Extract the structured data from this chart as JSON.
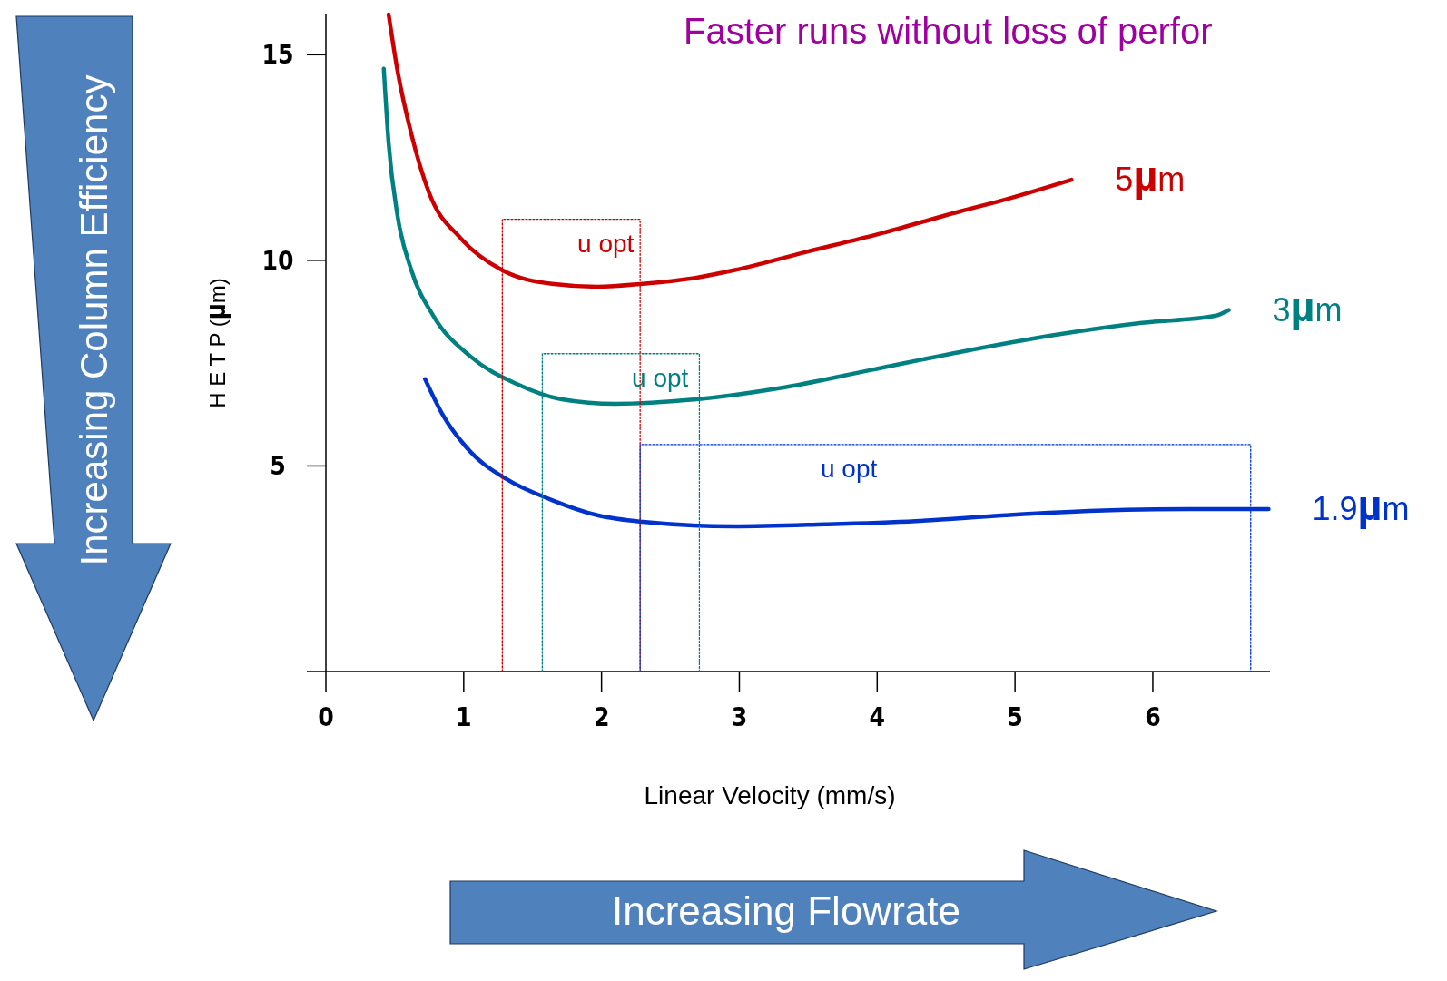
{
  "chart_data": {
    "type": "line",
    "title": "Faster runs without loss of perfor",
    "xlabel": "Linear Velocity (mm/s)",
    "ylabel": "H E T P  (µm)",
    "xlim": [
      0,
      6.85
    ],
    "ylim": [
      0,
      16
    ],
    "xticks": [
      0,
      1,
      2,
      3,
      4,
      5,
      6
    ],
    "yticks": [
      5,
      10,
      15
    ],
    "grid": false,
    "line_style": "solid",
    "marker": "none",
    "series": [
      {
        "name": "5µm",
        "color": "#cc0000",
        "x": [
          0.455,
          0.52,
          0.62,
          0.75,
          0.98,
          1.28,
          1.64,
          1.97,
          2.3,
          2.69,
          2.96,
          3.48,
          4.01,
          4.6,
          4.93,
          5.41
        ],
        "values": [
          15.98,
          14.6,
          13.07,
          11.63,
          10.53,
          9.76,
          9.43,
          9.36,
          9.43,
          9.58,
          9.76,
          10.2,
          10.64,
          11.19,
          11.48,
          11.96
        ]
      },
      {
        "name": "3µm",
        "color": "#008080",
        "x": [
          0.42,
          0.455,
          0.52,
          0.62,
          0.78,
          1.05,
          1.38,
          1.71,
          2.1,
          2.69,
          3.29,
          3.95,
          4.6,
          5.26,
          5.92,
          6.45,
          6.55
        ],
        "values": [
          14.66,
          12.85,
          11.08,
          9.76,
          8.65,
          7.66,
          7.0,
          6.62,
          6.51,
          6.62,
          6.89,
          7.33,
          7.77,
          8.17,
          8.48,
          8.65,
          8.79
        ]
      },
      {
        "name": "1.9µm",
        "color": "#0033cc",
        "x": [
          0.72,
          0.85,
          1.05,
          1.31,
          1.64,
          1.97,
          2.3,
          2.96,
          3.62,
          4.28,
          4.93,
          5.59,
          6.25,
          6.84
        ],
        "values": [
          7.11,
          6.23,
          5.34,
          4.68,
          4.17,
          3.8,
          3.64,
          3.53,
          3.58,
          3.66,
          3.8,
          3.91,
          3.95,
          3.95
        ]
      },
      {
        "color": "#cc0000",
        "line_style": "dotted",
        "x": [
          1.28,
          1.28,
          2.28,
          2.28
        ],
        "values": [
          0,
          11,
          11,
          0
        ]
      },
      {
        "color": "#008080",
        "line_style": "dotted",
        "x": [
          1.57,
          1.57,
          2.71,
          2.71
        ],
        "values": [
          0,
          7.73,
          7.73,
          0
        ]
      },
      {
        "color": "#0033cc",
        "line_style": "dotted",
        "x": [
          2.28,
          2.28,
          6.71,
          6.71
        ],
        "values": [
          0,
          5.52,
          5.52,
          0
        ]
      }
    ],
    "annotations": [
      "u opt",
      "u opt",
      "u opt",
      "Increasing Column Efficiency",
      "Increasing Flowrate"
    ]
  }
}
